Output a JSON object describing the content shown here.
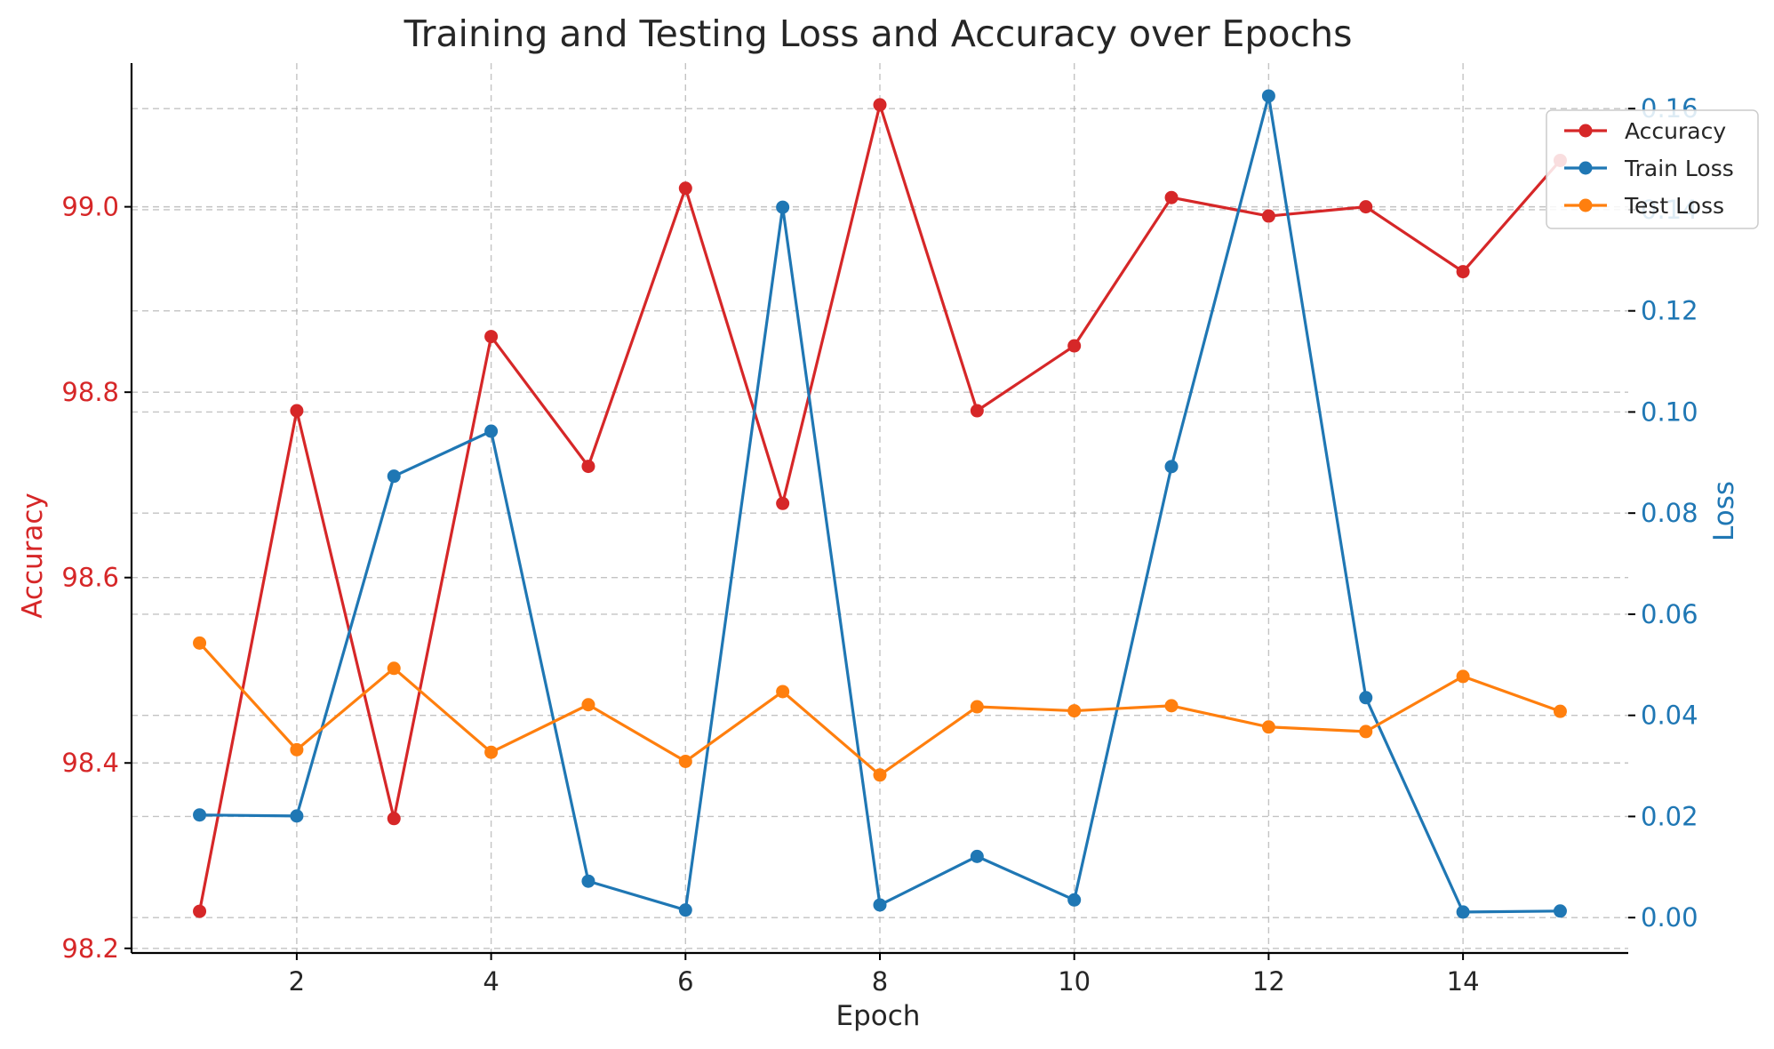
{
  "chart_data": {
    "type": "line",
    "title": "Training and Testing Loss and Accuracy over Epochs",
    "xlabel": "Epoch",
    "x": [
      1,
      2,
      3,
      4,
      5,
      6,
      7,
      8,
      9,
      10,
      11,
      12,
      13,
      14,
      15
    ],
    "x_ticks": [
      2,
      4,
      6,
      8,
      10,
      12,
      14
    ],
    "xlim": [
      0.3,
      15.7
    ],
    "grid": true,
    "legend_position": "top-right",
    "left_axis": {
      "label": "Accuracy",
      "color": "#d62728",
      "ylim": [
        98.195,
        99.155
      ],
      "ticks": [
        98.2,
        98.4,
        98.6,
        98.8,
        99.0
      ],
      "tick_labels": [
        "98.2",
        "98.4",
        "98.6",
        "98.8",
        "99.0"
      ]
    },
    "right_axis": {
      "label": "Loss",
      "color": "#1f77b4",
      "ylim": [
        -0.007,
        0.169
      ],
      "ticks": [
        0.0,
        0.02,
        0.04,
        0.06,
        0.08,
        0.1,
        0.12,
        0.14,
        0.16
      ],
      "tick_labels": [
        "0.00",
        "0.02",
        "0.04",
        "0.06",
        "0.08",
        "0.10",
        "0.12",
        "0.14",
        "0.16"
      ]
    },
    "series": [
      {
        "name": "Accuracy",
        "axis": "left",
        "color": "#d62728",
        "values": [
          98.24,
          98.78,
          98.34,
          98.86,
          98.72,
          99.02,
          98.68,
          99.11,
          98.78,
          98.85,
          99.01,
          98.99,
          99.0,
          98.93,
          99.05
        ]
      },
      {
        "name": "Train Loss",
        "axis": "right",
        "color": "#1f77b4",
        "values": [
          0.0203,
          0.0201,
          0.0873,
          0.0962,
          0.0072,
          0.0015,
          0.1405,
          0.0025,
          0.0121,
          0.0035,
          0.0892,
          0.1625,
          0.0435,
          0.0011,
          0.0013
        ]
      },
      {
        "name": "Test Loss",
        "axis": "right",
        "color": "#ff7f0e",
        "values": [
          0.0543,
          0.0332,
          0.0493,
          0.0327,
          0.0421,
          0.0309,
          0.0447,
          0.0282,
          0.0417,
          0.0409,
          0.0419,
          0.0377,
          0.0368,
          0.0477,
          0.0408
        ]
      }
    ]
  }
}
